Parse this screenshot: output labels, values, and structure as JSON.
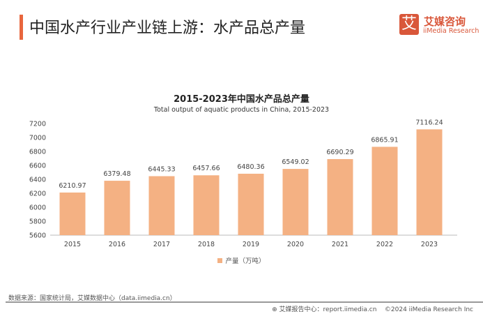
{
  "header": {
    "title": "中国水产行业产业链上游：水产品总产量",
    "logo_mark": "艾",
    "logo_cn": "艾媒咨询",
    "logo_en": "iiMedia Research"
  },
  "chart_data": {
    "type": "bar",
    "title": "2015-2023年中国水产品总产量",
    "subtitle": "Total output of aquatic products in China, 2015-2023",
    "categories": [
      "2015",
      "2016",
      "2017",
      "2018",
      "2019",
      "2020",
      "2021",
      "2022",
      "2023"
    ],
    "series": [
      {
        "name": "产量（万吨）",
        "values": [
          6210.97,
          6379.48,
          6445.33,
          6457.66,
          6480.36,
          6549.02,
          6690.29,
          6865.91,
          7116.24
        ]
      }
    ],
    "ylim": [
      5600,
      7200
    ],
    "yticks": [
      5600,
      5800,
      6000,
      6200,
      6400,
      6600,
      6800,
      7000,
      7200
    ],
    "legend": "bottom",
    "color": "#f4b183"
  },
  "footer": {
    "source": "数据来源：国家统计局，艾媒数据中心（data.iimedia.cn）",
    "report": "艾媒报告中心：report.iimedia.cn",
    "copyright": "©2024  iiMedia Research  Inc"
  }
}
